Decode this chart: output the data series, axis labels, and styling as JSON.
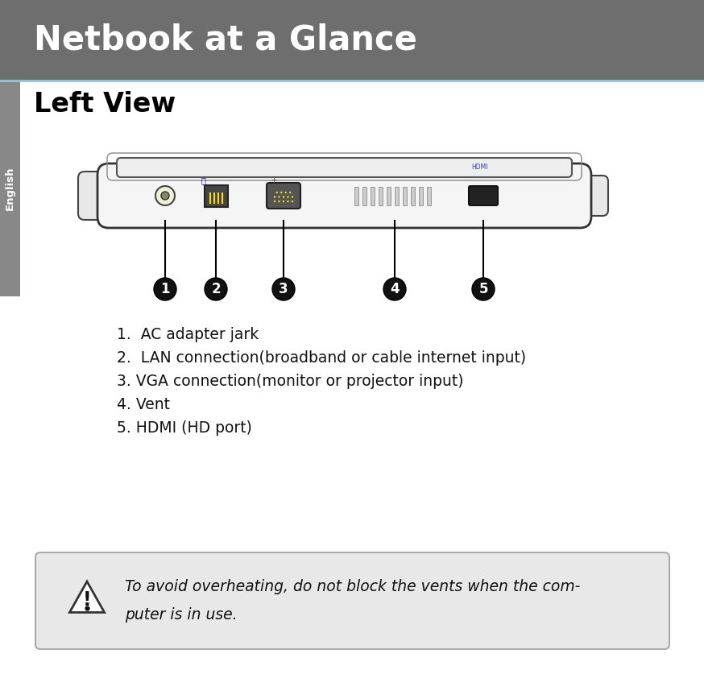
{
  "header_bg": "#6e6e6e",
  "header_text": "Netbook at a Glance",
  "header_text_color": "#ffffff",
  "page_bg": "#ffffff",
  "section_title": "Left View",
  "sidebar_bg": "#888888",
  "sidebar_text": "English",
  "sidebar_text_color": "#ffffff",
  "list_items": [
    "1.  AC adapter jark",
    "2.  LAN connection(broadband or cable internet input)",
    "3. VGA connection(monitor or projector input)",
    "4. Vent",
    "5. HDMI (HD port)"
  ],
  "warning_bg": "#e8e8e8",
  "warning_border": "#aaaaaa",
  "warning_text_line1": "To avoid overheating, do not block the vents when the com-",
  "warning_text_line2": "puter is in use.",
  "diagram_numbers": [
    "1",
    "2",
    "3",
    "4",
    "5"
  ]
}
